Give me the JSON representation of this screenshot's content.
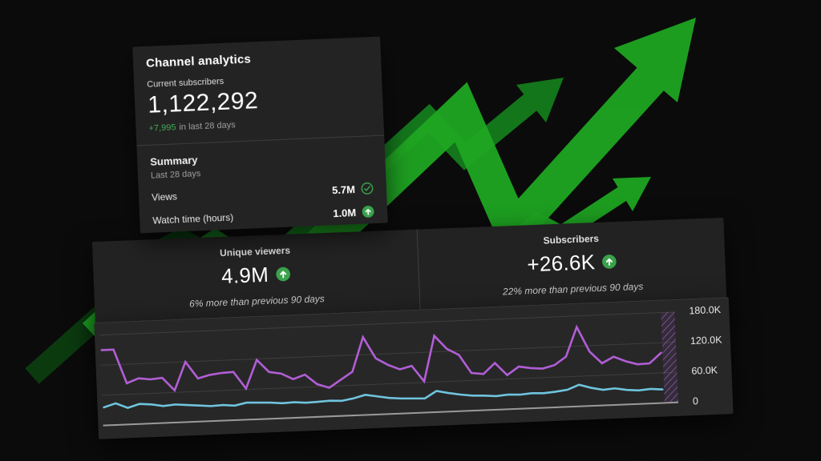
{
  "colors": {
    "background": "#0b0b0b",
    "card_bg": "#232323",
    "stats_bg": "#222222",
    "chart_bg": "#272727",
    "accent_green": "#3fae52",
    "icon_green": "#3aa24b",
    "arrow_bright_green": "#1fa622",
    "arrow_mid_green": "#15801d",
    "arrow_dark_green": "#0b3f10",
    "purple_line": "#b15ed6",
    "cyan_line": "#6fc4de"
  },
  "channel_card": {
    "title": "Channel analytics",
    "subscribers_label": "Current subscribers",
    "subscriber_count": "1,122,292",
    "subscriber_delta": "+7,995",
    "subscriber_delta_suffix": "in last 28 days",
    "summary": {
      "title": "Summary",
      "period": "Last 28 days",
      "rows": [
        {
          "label": "Views",
          "value": "5.7M",
          "icon": "check-circle-icon"
        },
        {
          "label": "Watch time (hours)",
          "value": "1.0M",
          "icon": "arrow-up-circle-icon"
        }
      ]
    }
  },
  "stats_panel": {
    "left": {
      "label": "Unique viewers",
      "value": "4.9M",
      "icon": "arrow-up-circle-icon",
      "comparison": "6% more than previous 90 days"
    },
    "right": {
      "label": "Subscribers",
      "value": "+26.6K",
      "icon": "arrow-up-circle-icon",
      "comparison": "22% more than previous 90 days"
    }
  },
  "chart_data": {
    "type": "line",
    "grid": "horizontal",
    "ylim": [
      0,
      180000
    ],
    "y_ticks": [
      {
        "label": "180.0K",
        "value": 180000
      },
      {
        "label": "120.0K",
        "value": 120000
      },
      {
        "label": "60.0K",
        "value": 60000
      },
      {
        "label": "0",
        "value": 0
      }
    ],
    "incomplete_data_region": "right-hatched-band",
    "series": [
      {
        "name": "purple-series",
        "color": "#b15ed6",
        "values": [
          150000,
          150000,
          82000,
          91000,
          88000,
          90000,
          64000,
          120000,
          86000,
          92000,
          95000,
          96000,
          62000,
          118000,
          93000,
          89000,
          77000,
          85000,
          65000,
          57000,
          72000,
          87000,
          155000,
          112000,
          98000,
          88000,
          94000,
          62000,
          152000,
          125000,
          112000,
          75000,
          72000,
          93000,
          68000,
          84000,
          80000,
          78000,
          84000,
          100000,
          158000,
          108000,
          84000,
          96000,
          86000,
          79000,
          80000,
          100000
        ]
      },
      {
        "name": "cyan-series",
        "color": "#6fc4de",
        "values": [
          36000,
          43000,
          33000,
          40000,
          38000,
          34000,
          36000,
          34000,
          32000,
          30000,
          31000,
          29000,
          34000,
          33000,
          32000,
          30000,
          31000,
          29000,
          30000,
          31000,
          30000,
          34000,
          40000,
          36000,
          32000,
          30000,
          29000,
          28000,
          42000,
          37000,
          33000,
          30000,
          29000,
          27000,
          29000,
          28000,
          30000,
          29000,
          31000,
          34000,
          43000,
          36000,
          31000,
          33000,
          29000,
          27000,
          29000,
          27000
        ]
      }
    ]
  }
}
